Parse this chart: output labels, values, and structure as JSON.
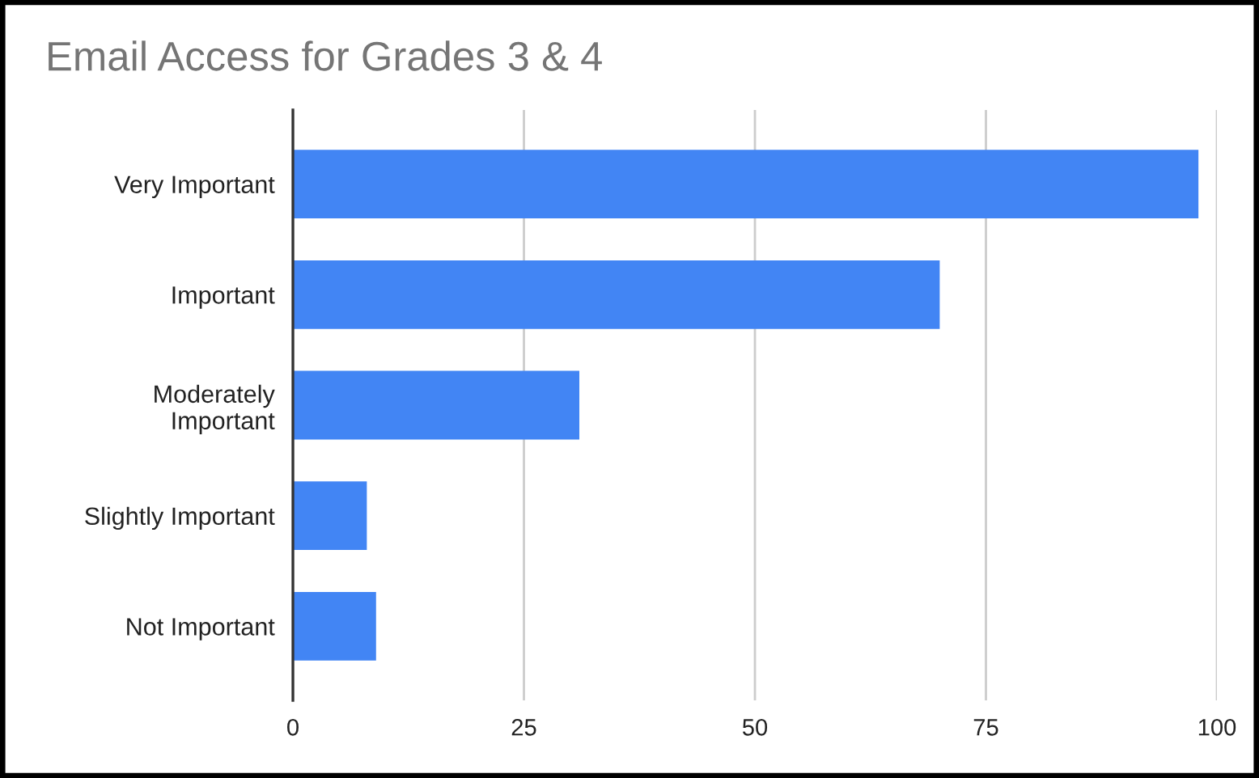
{
  "chart_data": {
    "type": "bar",
    "orientation": "horizontal",
    "title": "Email Access for Grades 3 & 4",
    "categories": [
      "Very Important",
      "Important",
      "Moderately\nImportant",
      "Slightly Important",
      "Not Important"
    ],
    "values": [
      98,
      70,
      31,
      8,
      9
    ],
    "color": "#4285f4",
    "xlim": [
      0,
      100
    ],
    "xticks": [
      0,
      25,
      50,
      75,
      100
    ],
    "grid": "x",
    "legend": false
  }
}
